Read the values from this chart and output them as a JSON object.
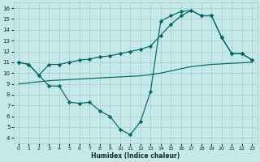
{
  "xlabel": "Humidex (Indice chaleur)",
  "bg_color": "#c5e8e8",
  "grid_color": "#a8cccc",
  "line_color": "#006868",
  "xlim": [
    -0.5,
    23.5
  ],
  "ylim": [
    3.5,
    16.5
  ],
  "xticks": [
    0,
    1,
    2,
    3,
    4,
    5,
    6,
    7,
    8,
    9,
    10,
    11,
    12,
    13,
    14,
    15,
    16,
    17,
    18,
    19,
    20,
    21,
    22,
    23
  ],
  "yticks": [
    4,
    5,
    6,
    7,
    8,
    9,
    10,
    11,
    12,
    13,
    14,
    15,
    16
  ],
  "curve1_x": [
    0,
    1,
    2,
    3,
    4,
    5,
    6,
    7,
    8,
    9,
    10,
    11,
    12,
    13,
    14,
    15,
    16,
    17,
    18,
    19,
    20,
    21,
    22,
    23
  ],
  "curve1_y": [
    11.0,
    10.8,
    9.8,
    8.8,
    8.8,
    7.3,
    7.2,
    7.3,
    6.5,
    6.0,
    4.8,
    4.3,
    5.5,
    8.3,
    14.8,
    15.3,
    15.7,
    15.8,
    15.3,
    15.3,
    13.3,
    11.8,
    11.8,
    11.2
  ],
  "curve2_x": [
    0,
    1,
    2,
    3,
    4,
    5,
    6,
    7,
    8,
    9,
    10,
    11,
    12,
    13,
    14,
    15,
    16,
    17,
    18,
    19,
    20,
    21,
    22,
    23
  ],
  "curve2_y": [
    11.0,
    10.8,
    9.8,
    10.8,
    10.8,
    11.0,
    11.2,
    11.3,
    11.5,
    11.6,
    11.8,
    12.0,
    12.2,
    12.5,
    13.5,
    14.5,
    15.3,
    15.8,
    15.3,
    15.3,
    13.3,
    11.8,
    11.8,
    11.2
  ],
  "curve3_x": [
    0,
    1,
    2,
    3,
    4,
    5,
    6,
    7,
    8,
    9,
    10,
    11,
    12,
    13,
    14,
    15,
    16,
    17,
    18,
    19,
    20,
    21,
    22,
    23
  ],
  "curve3_y": [
    9.0,
    9.1,
    9.2,
    9.3,
    9.35,
    9.4,
    9.45,
    9.5,
    9.55,
    9.6,
    9.65,
    9.7,
    9.75,
    9.85,
    10.0,
    10.2,
    10.4,
    10.6,
    10.7,
    10.8,
    10.85,
    10.9,
    10.95,
    11.0
  ]
}
